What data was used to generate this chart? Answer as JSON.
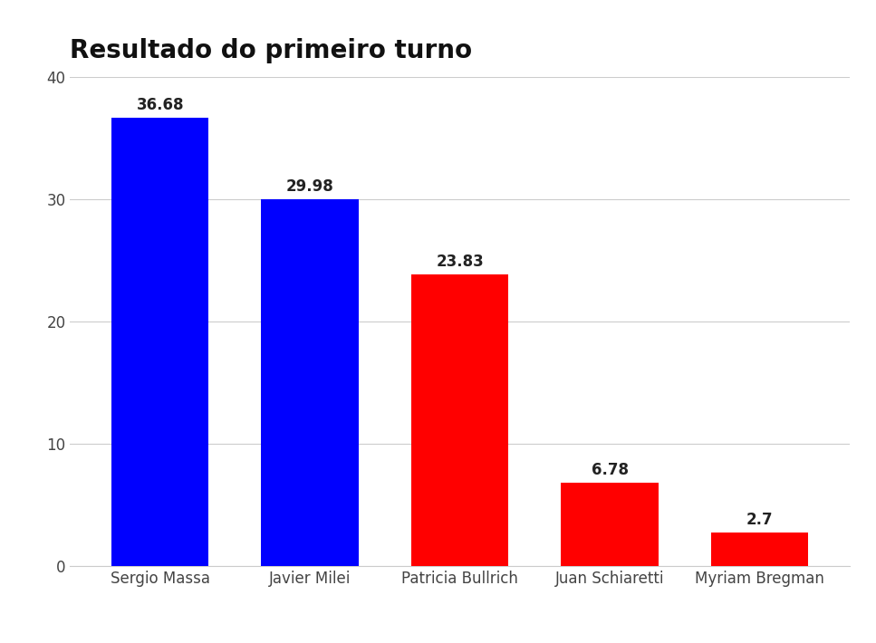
{
  "title": "Resultado do primeiro turno",
  "candidates": [
    "Sergio Massa",
    "Javier Milei",
    "Patricia Bullrich",
    "Juan Schiaretti",
    "Myriam Bregman"
  ],
  "values": [
    36.68,
    29.98,
    23.83,
    6.78,
    2.7
  ],
  "bar_colors": [
    "#0000FF",
    "#0000FF",
    "#FF0000",
    "#FF0000",
    "#FF0000"
  ],
  "ylim": [
    0,
    40
  ],
  "yticks": [
    0,
    10,
    20,
    30,
    40
  ],
  "title_fontsize": 20,
  "title_fontweight": "bold",
  "label_fontsize": 12,
  "value_fontsize": 12,
  "background_color": "#FFFFFF",
  "grid_color": "#CCCCCC",
  "tick_label_color": "#444444",
  "bar_width": 0.65
}
